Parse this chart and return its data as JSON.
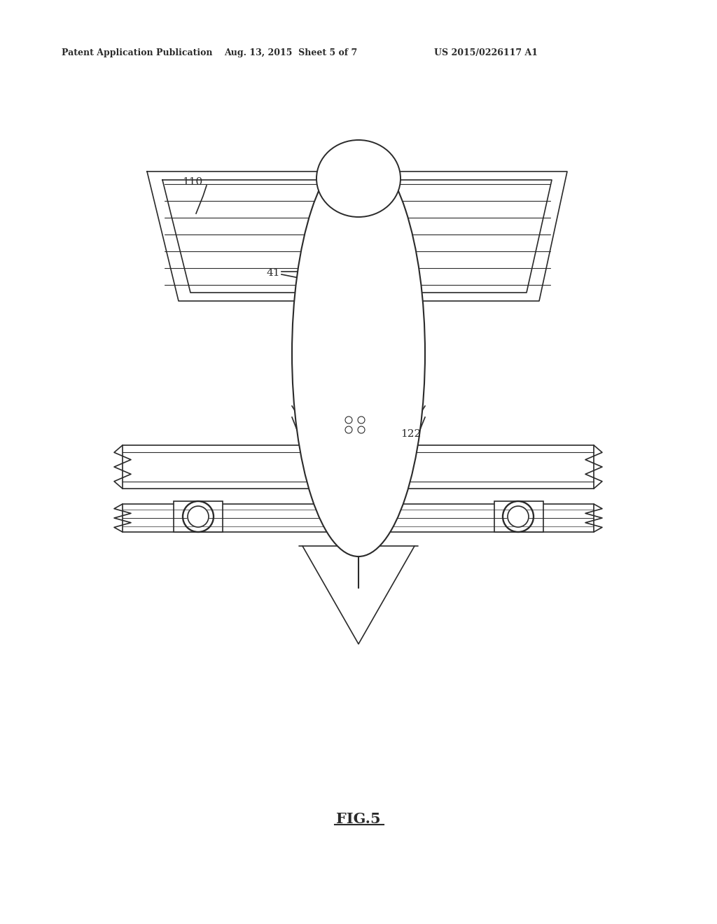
{
  "header_left": "Patent Application Publication",
  "header_mid": "Aug. 13, 2015  Sheet 5 of 7",
  "header_right": "US 2015/0226117 A1",
  "fig_label": "FIG.5",
  "label_110": "110",
  "label_41": "41",
  "label_122": "122",
  "bg_color": "#ffffff",
  "line_color": "#2a2a2a",
  "lw": 1.2
}
